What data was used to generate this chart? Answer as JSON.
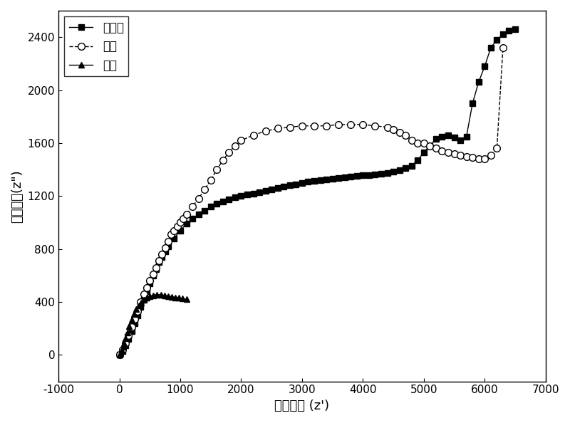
{
  "title": "",
  "xlabel": "阻抗实部 (z')",
  "ylabel": "阻抗虚部(z\")",
  "xlim": [
    -1000,
    7000
  ],
  "ylim": [
    -200,
    2600
  ],
  "xticks": [
    -1000,
    0,
    1000,
    2000,
    3000,
    4000,
    5000,
    6000,
    7000
  ],
  "yticks": [
    0,
    400,
    800,
    1200,
    1600,
    2000,
    2400
  ],
  "legend_labels": [
    "花岗岩",
    "泥岩",
    "砂岩"
  ],
  "granite_x": [
    0,
    50,
    100,
    150,
    200,
    250,
    300,
    350,
    400,
    450,
    500,
    550,
    600,
    650,
    700,
    750,
    800,
    900,
    1000,
    1100,
    1200,
    1300,
    1400,
    1500,
    1600,
    1700,
    1800,
    1900,
    2000,
    2100,
    2200,
    2300,
    2400,
    2500,
    2600,
    2700,
    2800,
    2900,
    3000,
    3100,
    3200,
    3300,
    3400,
    3500,
    3600,
    3700,
    3800,
    3900,
    4000,
    4100,
    4200,
    4300,
    4400,
    4500,
    4600,
    4700,
    4800,
    4900,
    5000,
    5100,
    5200,
    5300,
    5400,
    5500,
    5600,
    5700,
    5800,
    5900,
    6000,
    6100,
    6200,
    6300,
    6400,
    6500
  ],
  "granite_y": [
    0,
    30,
    70,
    120,
    180,
    240,
    300,
    360,
    420,
    480,
    540,
    600,
    650,
    700,
    740,
    780,
    820,
    880,
    940,
    990,
    1030,
    1060,
    1090,
    1120,
    1140,
    1160,
    1175,
    1190,
    1200,
    1210,
    1220,
    1230,
    1240,
    1250,
    1260,
    1270,
    1280,
    1290,
    1300,
    1310,
    1315,
    1320,
    1325,
    1330,
    1335,
    1340,
    1345,
    1350,
    1355,
    1360,
    1365,
    1370,
    1375,
    1385,
    1395,
    1410,
    1430,
    1470,
    1530,
    1580,
    1630,
    1650,
    1660,
    1640,
    1620,
    1650,
    1900,
    2060,
    2180,
    2320,
    2380,
    2420,
    2450,
    2460
  ],
  "mudstone_x": [
    0,
    50,
    100,
    150,
    200,
    250,
    300,
    350,
    400,
    450,
    500,
    550,
    600,
    650,
    700,
    750,
    800,
    850,
    900,
    950,
    1000,
    1050,
    1100,
    1200,
    1300,
    1400,
    1500,
    1600,
    1700,
    1800,
    1900,
    2000,
    2200,
    2400,
    2600,
    2800,
    3000,
    3200,
    3400,
    3600,
    3800,
    4000,
    4200,
    4400,
    4500,
    4600,
    4700,
    4800,
    4900,
    5000,
    5100,
    5200,
    5300,
    5400,
    5500,
    5600,
    5700,
    5800,
    5900,
    6000,
    6100,
    6200,
    6300
  ],
  "mudstone_y": [
    0,
    40,
    90,
    150,
    210,
    270,
    330,
    400,
    460,
    510,
    560,
    610,
    660,
    710,
    760,
    810,
    860,
    910,
    940,
    970,
    1000,
    1030,
    1060,
    1120,
    1180,
    1250,
    1320,
    1400,
    1470,
    1530,
    1580,
    1620,
    1660,
    1690,
    1710,
    1720,
    1730,
    1730,
    1730,
    1740,
    1740,
    1740,
    1730,
    1720,
    1700,
    1680,
    1660,
    1620,
    1600,
    1600,
    1580,
    1560,
    1540,
    1530,
    1520,
    1510,
    1500,
    1490,
    1480,
    1480,
    1510,
    1560,
    2320
  ],
  "sandstone_x": [
    0,
    20,
    40,
    60,
    80,
    100,
    130,
    160,
    200,
    240,
    280,
    320,
    360,
    400,
    450,
    500,
    560,
    620,
    680,
    740,
    800,
    860,
    920,
    980,
    1040,
    1100
  ],
  "sandstone_y": [
    0,
    15,
    35,
    60,
    90,
    125,
    170,
    215,
    265,
    310,
    345,
    375,
    395,
    415,
    430,
    445,
    450,
    455,
    455,
    450,
    445,
    440,
    435,
    430,
    425,
    420
  ],
  "line_color": "#000000",
  "marker_granite": "s",
  "marker_mudstone": "o",
  "marker_sandstone": "^",
  "background_color": "#ffffff",
  "font_size": 13,
  "legend_font_size": 12
}
